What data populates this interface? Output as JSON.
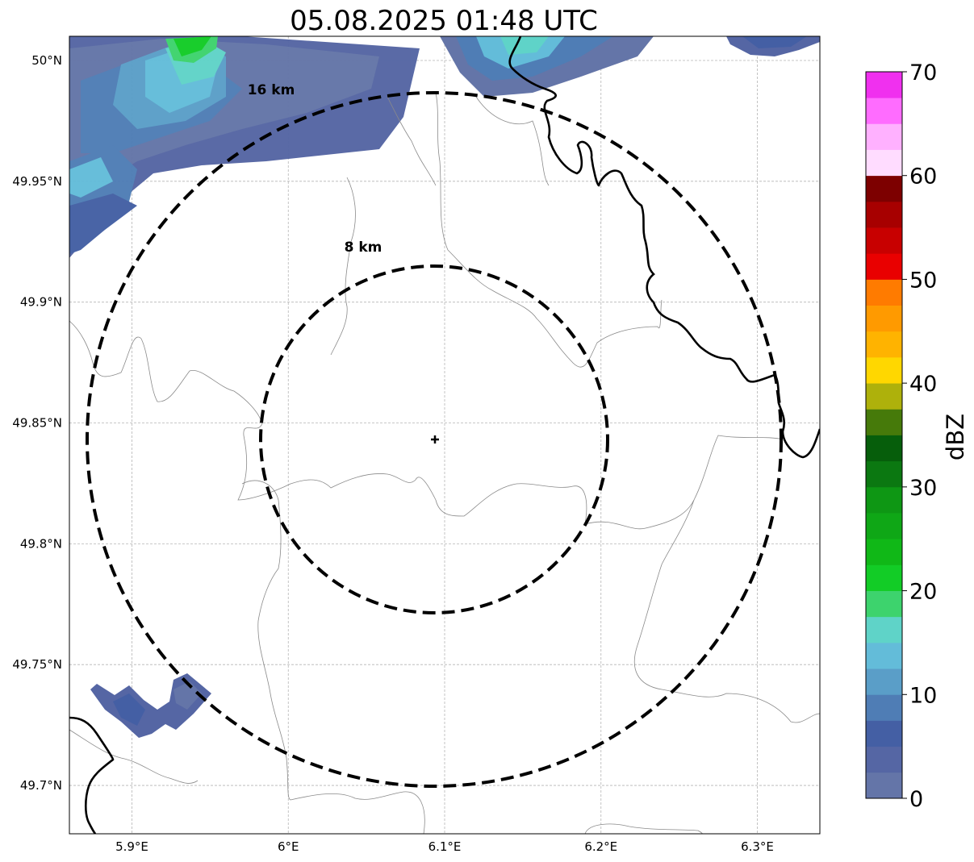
{
  "title": "05.08.2025 01:48 UTC",
  "map": {
    "lon_range": [
      5.86,
      6.34
    ],
    "lat_range": [
      49.68,
      50.01
    ],
    "x_ticks": [
      {
        "value": 5.9,
        "label": "5.9°E"
      },
      {
        "value": 6.0,
        "label": "6°E"
      },
      {
        "value": 6.1,
        "label": "6.1°E"
      },
      {
        "value": 6.2,
        "label": "6.2°E"
      },
      {
        "value": 6.3,
        "label": "6.3°E"
      }
    ],
    "y_ticks": [
      {
        "value": 50.0,
        "label": "50°N"
      },
      {
        "value": 49.95,
        "label": "49.95°N"
      },
      {
        "value": 49.9,
        "label": "49.9°N"
      },
      {
        "value": 49.85,
        "label": "49.85°N"
      },
      {
        "value": 49.8,
        "label": "49.8°N"
      },
      {
        "value": 49.75,
        "label": "49.75°N"
      },
      {
        "value": 49.7,
        "label": "49.7°N"
      }
    ],
    "grid": true,
    "center": {
      "lon": 6.094,
      "lat": 49.843
    },
    "rings": [
      {
        "radius_km": 8,
        "label": "8 km"
      },
      {
        "radius_km": 16,
        "label": "16 km"
      }
    ]
  },
  "colorbar": {
    "label": "dBZ",
    "min": 0,
    "max": 70,
    "ticks": [
      0,
      10,
      20,
      30,
      40,
      50,
      60,
      70
    ],
    "colors": [
      "#6475a8",
      "#5566a4",
      "#445fa4",
      "#4f7db5",
      "#5a9ec8",
      "#63bcd9",
      "#5fd3c8",
      "#3dd36d",
      "#12cc26",
      "#10b817",
      "#0fa716",
      "#0e9714",
      "#0b7811",
      "#065e0b",
      "#467a0a",
      "#aeb10b",
      "#ffd700",
      "#ffb300",
      "#ff9a00",
      "#ff7b00",
      "#e90000",
      "#c80000",
      "#a70000",
      "#7d0000",
      "#ffdcff",
      "#ffb1ff",
      "#ff6cff",
      "#f030ef"
    ]
  },
  "echo_regions": [
    {
      "name": "north-west",
      "max_dbz": 20
    },
    {
      "name": "north-center",
      "max_dbz": 16
    },
    {
      "name": "north-east",
      "max_dbz": 7
    },
    {
      "name": "south-west",
      "max_dbz": 6
    }
  ]
}
